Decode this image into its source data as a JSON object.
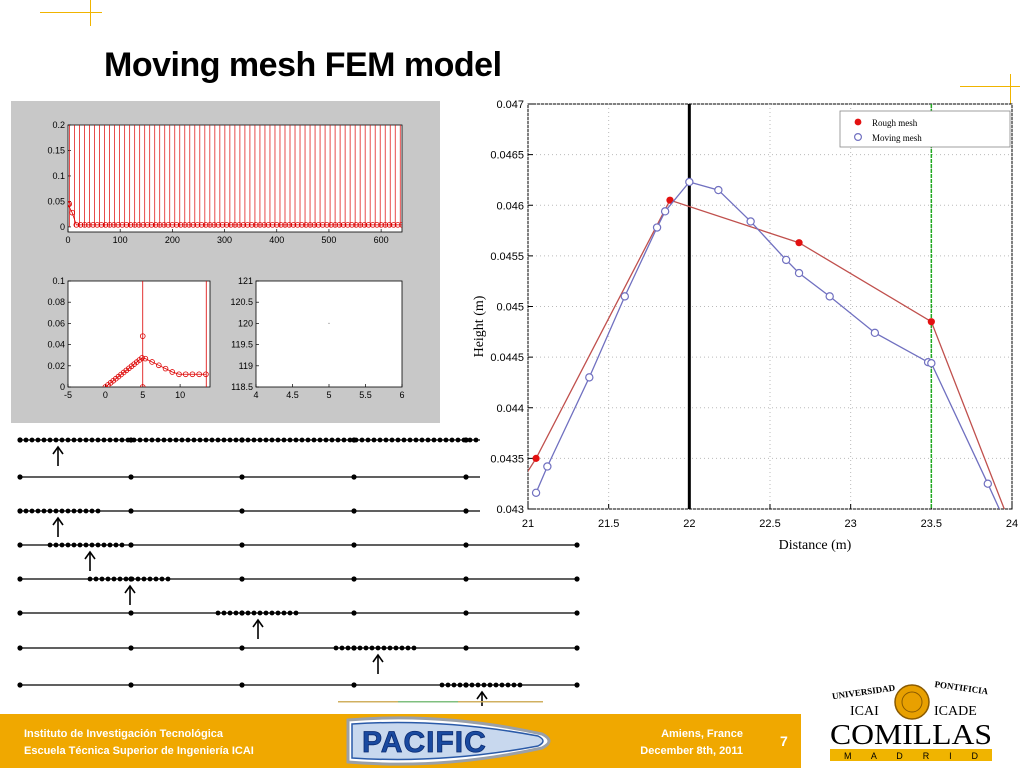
{
  "slide": {
    "title": "Moving mesh FEM model",
    "page_number": "7"
  },
  "footer": {
    "institute_line1": "Instituto de Investigación Tecnológica",
    "institute_line2": "Escuela Técnica Superior de Ingeniería ICAI",
    "location": "Amiens, France",
    "date": "December 8th, 2011",
    "logo_text": "PACIFIC"
  },
  "university_logo": {
    "top_left": "UNIVERSIDAD",
    "top_right": "PONTIFICIA",
    "left": "ICAI",
    "right": "ICADE",
    "name": "COMILLAS",
    "city": "M A D R I D"
  },
  "chart_data": [
    {
      "type": "line",
      "xlabel": "Distance (m)",
      "ylabel": "Height  (m)",
      "xlim": [
        21,
        24
      ],
      "ylim": [
        0.043,
        0.047
      ],
      "xticks": [
        "21",
        "21.5",
        "22",
        "22.5",
        "23",
        "23.5",
        "24"
      ],
      "yticks": [
        "0.043",
        "0.0435",
        "0.044",
        "0.0445",
        "0.045",
        "0.0455",
        "0.046",
        "0.0465",
        "0.047"
      ],
      "grid": true,
      "legend_position": "top-right",
      "vertical_lines": [
        {
          "x": 22,
          "color": "#000000"
        },
        {
          "x": 23.5,
          "color": "#22aa22"
        }
      ],
      "series": [
        {
          "name": "Rough mesh",
          "color": "#c0504d",
          "marker": "filled-circle",
          "x": [
            20.95,
            21.05,
            21.88,
            22.68,
            23.5,
            24.05
          ],
          "y": [
            0.04325,
            0.0435,
            0.04605,
            0.04563,
            0.04485,
            0.0426
          ]
        },
        {
          "name": "Moving mesh",
          "color": "#7070c0",
          "marker": "open-circle",
          "x": [
            21.05,
            21.12,
            21.38,
            21.6,
            21.8,
            21.85,
            22.0,
            22.18,
            22.38,
            22.6,
            22.68,
            22.87,
            23.15,
            23.48,
            23.5,
            23.85,
            23.95
          ],
          "y": [
            0.04316,
            0.04342,
            0.0443,
            0.0451,
            0.04578,
            0.04594,
            0.04623,
            0.04615,
            0.04584,
            0.04546,
            0.04533,
            0.0451,
            0.04474,
            0.04445,
            0.04444,
            0.04325,
            0.0429
          ]
        }
      ]
    },
    {
      "type": "line",
      "xlim": [
        0,
        640
      ],
      "ylim": [
        -0.01,
        0.2
      ],
      "xticks": [
        "0",
        "100",
        "200",
        "300",
        "400",
        "500",
        "600"
      ],
      "yticks": [
        "0",
        "0.05",
        "0.1",
        "0.15",
        "0.2"
      ],
      "color": "#dd0000"
    },
    {
      "type": "line",
      "xlim": [
        -5,
        14
      ],
      "ylim": [
        0,
        0.1
      ],
      "xticks": [
        "-5",
        "0",
        "5",
        "10"
      ],
      "yticks": [
        "0",
        "0.02",
        "0.04",
        "0.06",
        "0.08",
        "0.1"
      ],
      "color": "#dd0000"
    },
    {
      "type": "line",
      "xlim": [
        4,
        6
      ],
      "ylim": [
        118.5,
        121
      ],
      "xticks": [
        "4",
        "4.5",
        "5",
        "5.5",
        "6"
      ],
      "yticks": [
        "118.5",
        "119",
        "119.5",
        "120",
        "120.5",
        "121"
      ]
    }
  ],
  "colors": {
    "accent": "#f0a800",
    "rough": "#c0504d",
    "moving": "#7070c0"
  }
}
